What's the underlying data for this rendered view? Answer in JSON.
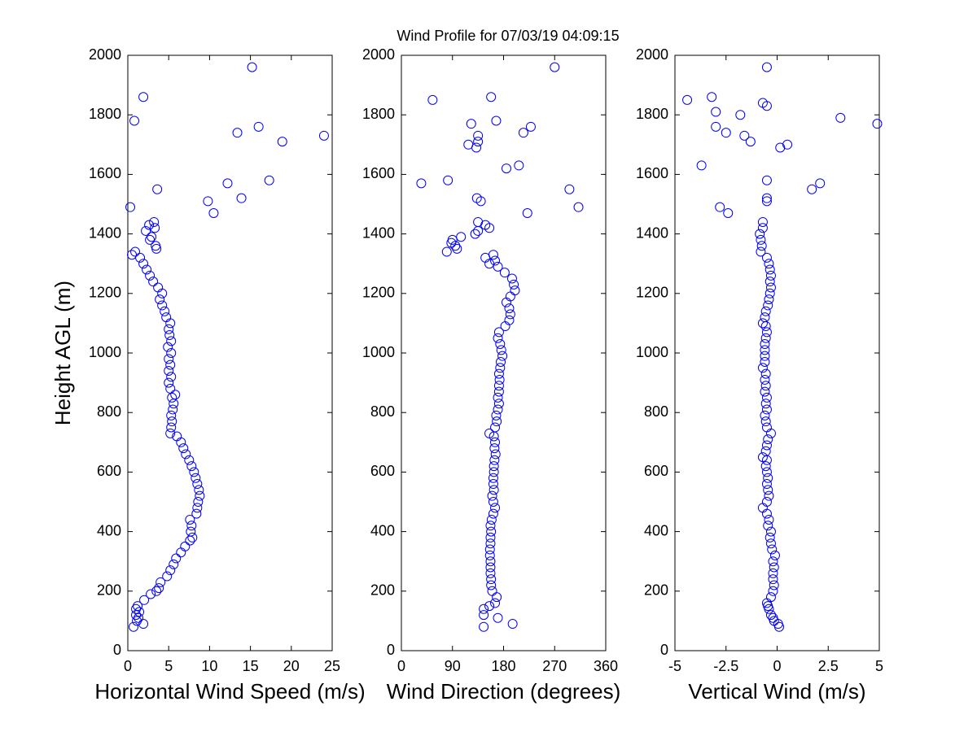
{
  "title": "Wind Profile for  07/03/19 04:09:15",
  "chart_data": [
    {
      "type": "scatter",
      "xlabel": "Horizontal Wind Speed (m/s)",
      "ylabel": "Height AGL (m)",
      "color": "#0000ff",
      "xlim": [
        0,
        25
      ],
      "xticks": [
        0,
        5,
        10,
        15,
        20,
        25
      ],
      "ylim": [
        0,
        2000
      ],
      "yticks": [
        0,
        200,
        400,
        600,
        800,
        1000,
        1200,
        1400,
        1600,
        1800,
        2000
      ],
      "y": [
        80,
        90,
        100,
        110,
        120,
        130,
        140,
        150,
        170,
        190,
        200,
        210,
        230,
        250,
        270,
        290,
        310,
        330,
        350,
        370,
        380,
        400,
        420,
        440,
        460,
        480,
        500,
        520,
        540,
        560,
        580,
        600,
        620,
        640,
        660,
        680,
        700,
        720,
        730,
        750,
        770,
        790,
        810,
        830,
        850,
        860,
        880,
        900,
        920,
        940,
        960,
        980,
        1000,
        1020,
        1040,
        1060,
        1080,
        1100,
        1120,
        1140,
        1160,
        1180,
        1200,
        1220,
        1240,
        1260,
        1280,
        1300,
        1320,
        1330,
        1340,
        1350,
        1360,
        1380,
        1390,
        1410,
        1420,
        1430,
        1440,
        1470,
        1490,
        1510,
        1520,
        1550,
        1570,
        1580,
        1710,
        1730,
        1740,
        1760,
        1780,
        1860,
        1960
      ],
      "x": [
        0.7,
        1.9,
        1.1,
        1.3,
        1.0,
        1.4,
        1.0,
        1.2,
        2.0,
        2.8,
        3.5,
        3.8,
        4.0,
        4.8,
        5.2,
        5.6,
        5.9,
        6.5,
        7.0,
        7.6,
        7.9,
        7.7,
        7.8,
        7.6,
        8.4,
        8.5,
        8.6,
        8.8,
        8.7,
        8.5,
        8.3,
        8.1,
        7.8,
        7.5,
        7.1,
        6.8,
        6.5,
        6.0,
        5.2,
        5.3,
        5.4,
        5.3,
        5.5,
        5.6,
        5.4,
        5.8,
        5.2,
        5.0,
        5.3,
        5.0,
        5.2,
        5.0,
        5.3,
        4.9,
        5.3,
        5.1,
        5.0,
        5.2,
        4.7,
        4.5,
        4.2,
        3.9,
        4.2,
        3.7,
        3.1,
        2.7,
        2.3,
        1.9,
        1.5,
        0.5,
        0.9,
        3.5,
        3.4,
        2.7,
        2.9,
        2.2,
        3.3,
        2.6,
        3.2,
        10.5,
        0.3,
        9.8,
        13.9,
        3.6,
        12.2,
        17.3,
        18.9,
        24.0,
        13.4,
        16.0,
        0.8,
        1.9,
        15.2
      ]
    },
    {
      "type": "scatter",
      "xlabel": "Wind Direction (degrees)",
      "color": "#0000ff",
      "xlim": [
        0,
        360
      ],
      "xticks": [
        0,
        90,
        180,
        270,
        360
      ],
      "ylim": [
        0,
        2000
      ],
      "yticks": [
        0,
        200,
        400,
        600,
        800,
        1000,
        1200,
        1400,
        1600,
        1800,
        2000
      ],
      "y": [
        80,
        90,
        110,
        120,
        140,
        150,
        160,
        180,
        200,
        220,
        240,
        260,
        280,
        300,
        320,
        340,
        360,
        380,
        400,
        420,
        440,
        460,
        480,
        500,
        520,
        540,
        560,
        580,
        600,
        620,
        640,
        660,
        680,
        700,
        720,
        730,
        750,
        770,
        790,
        810,
        830,
        850,
        870,
        890,
        910,
        930,
        950,
        970,
        990,
        1010,
        1030,
        1050,
        1070,
        1090,
        1110,
        1130,
        1150,
        1170,
        1190,
        1210,
        1230,
        1250,
        1270,
        1290,
        1300,
        1310,
        1320,
        1330,
        1340,
        1350,
        1360,
        1370,
        1380,
        1390,
        1400,
        1410,
        1420,
        1430,
        1440,
        1470,
        1490,
        1510,
        1520,
        1550,
        1570,
        1580,
        1620,
        1630,
        1690,
        1700,
        1710,
        1730,
        1740,
        1760,
        1770,
        1780,
        1850,
        1860,
        1960
      ],
      "x": [
        145,
        196,
        170,
        145,
        145,
        155,
        165,
        168,
        160,
        158,
        158,
        157,
        157,
        157,
        156,
        156,
        157,
        157,
        158,
        157,
        159,
        162,
        165,
        162,
        160,
        163,
        162,
        162,
        163,
        163,
        164,
        166,
        164,
        165,
        163,
        155,
        165,
        168,
        167,
        170,
        172,
        170,
        172,
        172,
        173,
        172,
        174,
        175,
        178,
        176,
        174,
        170,
        172,
        183,
        190,
        192,
        190,
        185,
        192,
        200,
        198,
        195,
        182,
        170,
        155,
        165,
        148,
        162,
        80,
        98,
        95,
        88,
        90,
        105,
        130,
        135,
        155,
        148,
        135,
        222,
        312,
        140,
        133,
        296,
        35,
        82,
        185,
        207,
        132,
        118,
        135,
        135,
        215,
        228,
        123,
        167,
        55,
        158,
        270
      ]
    },
    {
      "type": "scatter",
      "xlabel": "Vertical Wind (m/s)",
      "color": "#0000ff",
      "xlim": [
        -5,
        5
      ],
      "xticks": [
        -5,
        -2.5,
        0,
        2.5,
        5
      ],
      "ylim": [
        0,
        2000
      ],
      "yticks": [
        0,
        200,
        400,
        600,
        800,
        1000,
        1200,
        1400,
        1600,
        1800,
        2000
      ],
      "y": [
        80,
        90,
        100,
        110,
        120,
        140,
        150,
        160,
        180,
        200,
        220,
        240,
        260,
        280,
        300,
        320,
        340,
        360,
        380,
        400,
        420,
        440,
        460,
        480,
        500,
        520,
        540,
        560,
        580,
        600,
        620,
        640,
        650,
        670,
        690,
        710,
        730,
        750,
        770,
        790,
        810,
        830,
        850,
        870,
        890,
        910,
        930,
        950,
        970,
        990,
        1010,
        1030,
        1050,
        1070,
        1090,
        1100,
        1120,
        1140,
        1160,
        1180,
        1200,
        1220,
        1240,
        1260,
        1280,
        1300,
        1320,
        1340,
        1360,
        1380,
        1400,
        1420,
        1440,
        1470,
        1490,
        1510,
        1520,
        1550,
        1570,
        1580,
        1630,
        1690,
        1700,
        1710,
        1730,
        1740,
        1760,
        1770,
        1790,
        1800,
        1810,
        1830,
        1840,
        1850,
        1860,
        1960
      ],
      "x": [
        0.1,
        0.05,
        -0.15,
        -0.2,
        -0.3,
        -0.4,
        -0.45,
        -0.5,
        -0.3,
        -0.2,
        -0.15,
        -0.2,
        -0.2,
        -0.15,
        -0.2,
        -0.1,
        -0.25,
        -0.3,
        -0.35,
        -0.3,
        -0.45,
        -0.4,
        -0.5,
        -0.7,
        -0.5,
        -0.4,
        -0.45,
        -0.5,
        -0.45,
        -0.5,
        -0.55,
        -0.5,
        -0.7,
        -0.55,
        -0.5,
        -0.45,
        -0.3,
        -0.5,
        -0.55,
        -0.6,
        -0.5,
        -0.55,
        -0.5,
        -0.6,
        -0.55,
        -0.6,
        -0.55,
        -0.7,
        -0.6,
        -0.6,
        -0.6,
        -0.6,
        -0.55,
        -0.5,
        -0.55,
        -0.7,
        -0.6,
        -0.55,
        -0.45,
        -0.4,
        -0.35,
        -0.3,
        -0.35,
        -0.3,
        -0.35,
        -0.4,
        -0.5,
        -0.8,
        -0.75,
        -0.8,
        -0.85,
        -0.7,
        -0.7,
        -2.4,
        -2.8,
        -0.5,
        -0.5,
        1.7,
        2.1,
        -0.5,
        -3.7,
        0.15,
        0.5,
        -1.3,
        -1.6,
        -2.5,
        -3.0,
        4.9,
        3.1,
        -1.8,
        -3.0,
        -0.5,
        -0.7,
        -4.4,
        -3.2,
        -0.5
      ]
    }
  ]
}
